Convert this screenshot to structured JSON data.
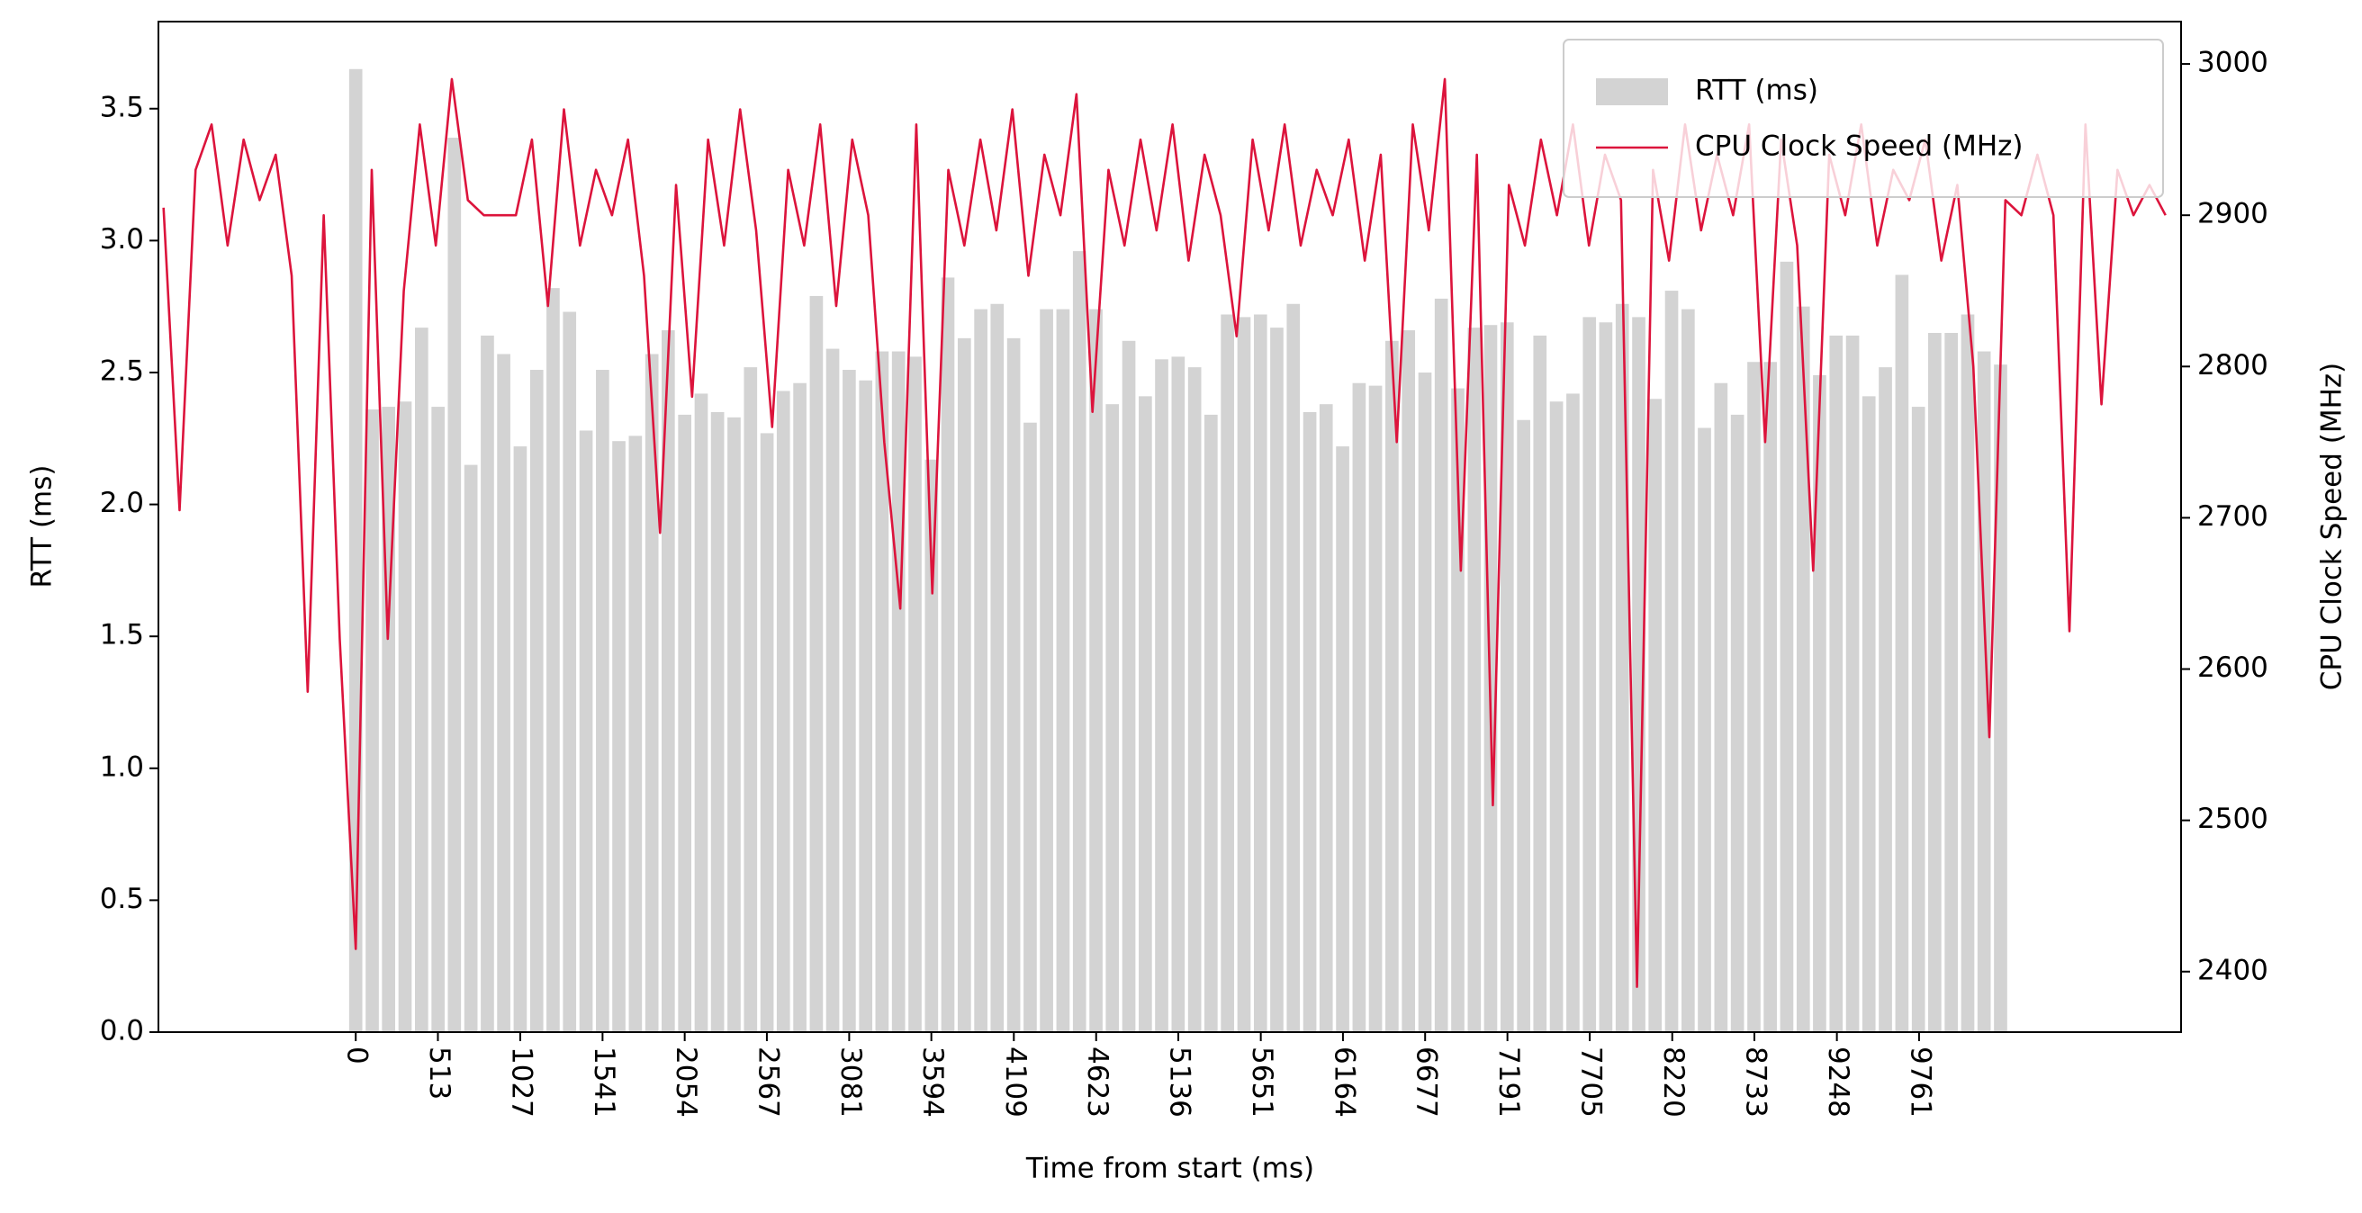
{
  "chart_data": {
    "type": "bar",
    "xlabel": "Time from start (ms)",
    "ylabel": "RTT (ms)",
    "y2label": "CPU Clock Speed (MHz)",
    "xlim": [
      -1232,
      11397
    ],
    "xticks": [
      0,
      513,
      1027,
      1541,
      2054,
      2567,
      3081,
      3594,
      4109,
      4623,
      5136,
      5651,
      6164,
      6677,
      7191,
      7705,
      8220,
      8733,
      9248,
      9761
    ],
    "ylim": [
      0,
      3.83
    ],
    "yticks": [
      0.0,
      0.5,
      1.0,
      1.5,
      2.0,
      2.5,
      3.0,
      3.5
    ],
    "y2lim": [
      2360,
      3028
    ],
    "y2ticks": [
      2400,
      2500,
      2600,
      2700,
      2800,
      2900,
      3000
    ],
    "grid": false,
    "legend": "upper right",
    "series": [
      {
        "name": "RTT (ms)",
        "type": "bar",
        "color": "#d3d3d3",
        "x": [
          0,
          103,
          205,
          308,
          411,
          514,
          616,
          719,
          822,
          924,
          1027,
          1130,
          1232,
          1335,
          1438,
          1541,
          1643,
          1746,
          1849,
          1951,
          2054,
          2157,
          2259,
          2362,
          2465,
          2568,
          2670,
          2773,
          2876,
          2978,
          3081,
          3184,
          3286,
          3389,
          3492,
          3595,
          3697,
          3800,
          3903,
          4005,
          4108,
          4211,
          4313,
          4416,
          4519,
          4622,
          4724,
          4827,
          4930,
          5032,
          5135,
          5238,
          5340,
          5443,
          5546,
          5649,
          5751,
          5854,
          5957,
          6059,
          6162,
          6265,
          6367,
          6470,
          6573,
          6676,
          6778,
          6881,
          6984,
          7086,
          7189,
          7292,
          7394,
          7497,
          7600,
          7703,
          7805,
          7908,
          8011,
          8113,
          8216,
          8319,
          8421,
          8524,
          8627,
          8730,
          8832,
          8935,
          9038,
          9140,
          9243,
          9346,
          9448,
          9551,
          9654,
          9757,
          9859,
          9962,
          10065,
          10167,
          10270
        ],
        "values": [
          3.65,
          2.36,
          2.37,
          2.39,
          2.67,
          2.37,
          3.39,
          2.15,
          2.64,
          2.57,
          2.22,
          2.51,
          2.82,
          2.73,
          2.28,
          2.51,
          2.24,
          2.26,
          2.57,
          2.66,
          2.34,
          2.42,
          2.35,
          2.33,
          2.52,
          2.27,
          2.43,
          2.46,
          2.79,
          2.59,
          2.51,
          2.47,
          2.58,
          2.58,
          2.56,
          2.17,
          2.86,
          2.63,
          2.74,
          2.76,
          2.63,
          2.31,
          2.74,
          2.74,
          2.96,
          2.74,
          2.38,
          2.62,
          2.41,
          2.55,
          2.56,
          2.52,
          2.34,
          2.72,
          2.71,
          2.72,
          2.67,
          2.76,
          2.35,
          2.38,
          2.22,
          2.46,
          2.45,
          2.62,
          2.66,
          2.5,
          2.78,
          2.44,
          2.67,
          2.68,
          2.69,
          2.32,
          2.64,
          2.39,
          2.42,
          2.71,
          2.69,
          2.76,
          2.71,
          2.4,
          2.81,
          2.74,
          2.29,
          2.46,
          2.34,
          2.54,
          2.54,
          2.92,
          2.75,
          2.49,
          2.64,
          2.64,
          2.41,
          2.52,
          2.87,
          2.37,
          2.65,
          2.65,
          2.72,
          2.58,
          2.53
        ]
      },
      {
        "name": "CPU Clock Speed (MHz)",
        "type": "line",
        "axis": "y2",
        "color": "#dc143c",
        "x": [
          -1200,
          -1100,
          -1000,
          -900,
          -800,
          -700,
          -600,
          -500,
          -400,
          -300,
          -200,
          -100,
          0,
          100,
          200,
          300,
          400,
          500,
          600,
          700,
          800,
          900,
          1000,
          1100,
          1200,
          1300,
          1400,
          1500,
          1600,
          1700,
          1800,
          1900,
          2000,
          2100,
          2200,
          2300,
          2400,
          2500,
          2600,
          2700,
          2800,
          2900,
          3000,
          3100,
          3200,
          3300,
          3400,
          3500,
          3600,
          3700,
          3800,
          3900,
          4000,
          4100,
          4200,
          4300,
          4400,
          4500,
          4600,
          4700,
          4800,
          4900,
          5000,
          5100,
          5200,
          5300,
          5400,
          5500,
          5600,
          5700,
          5800,
          5900,
          6000,
          6100,
          6200,
          6300,
          6400,
          6500,
          6600,
          6700,
          6800,
          6900,
          7000,
          7100,
          7200,
          7300,
          7400,
          7500,
          7600,
          7700,
          7800,
          7900,
          8000,
          8100,
          8200,
          8300,
          8400,
          8500,
          8600,
          8700,
          8800,
          8900,
          9000,
          9100,
          9200,
          9300,
          9400,
          9500,
          9600,
          9700,
          9800,
          9900,
          10000,
          10100,
          10200,
          10300,
          10400,
          10500,
          10600,
          10700,
          10800,
          10900,
          11000,
          11100,
          11200,
          11300
        ],
        "values": [
          2905,
          2705,
          2930,
          2960,
          2880,
          2950,
          2910,
          2940,
          2860,
          2585,
          2900,
          2620,
          2415,
          2930,
          2620,
          2850,
          2960,
          2880,
          2990,
          2910,
          2900,
          2900,
          2900,
          2950,
          2840,
          2970,
          2880,
          2930,
          2900,
          2950,
          2860,
          2690,
          2920,
          2780,
          2950,
          2880,
          2970,
          2890,
          2760,
          2930,
          2880,
          2960,
          2840,
          2950,
          2900,
          2750,
          2640,
          2960,
          2650,
          2930,
          2880,
          2950,
          2890,
          2970,
          2860,
          2940,
          2900,
          2980,
          2770,
          2930,
          2880,
          2950,
          2890,
          2960,
          2870,
          2940,
          2900,
          2820,
          2950,
          2890,
          2960,
          2880,
          2930,
          2900,
          2950,
          2870,
          2940,
          2750,
          2960,
          2890,
          2990,
          2665,
          2940,
          2510,
          2920,
          2880,
          2950,
          2900,
          2960,
          2880,
          2940,
          2910,
          2390,
          2930,
          2870,
          2960,
          2890,
          2940,
          2900,
          2960,
          2750,
          2950,
          2880,
          2665,
          2940,
          2900,
          2960,
          2880,
          2930,
          2910,
          2950,
          2870,
          2920,
          2800,
          2555,
          2910,
          2900,
          2940,
          2900,
          2625,
          2960,
          2775,
          2930,
          2900,
          2920,
          2900
        ]
      }
    ]
  }
}
